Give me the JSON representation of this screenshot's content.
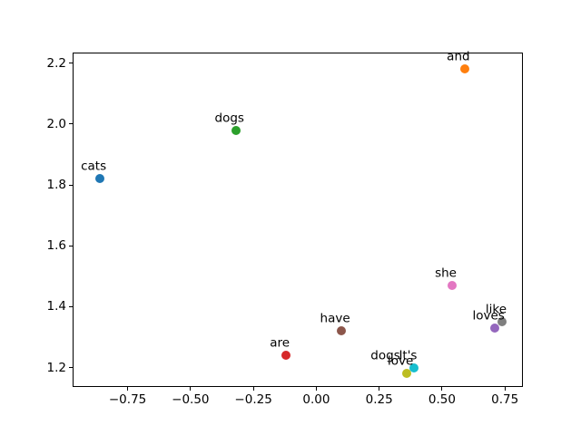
{
  "figure": {
    "background": "#ffffff",
    "title": ""
  },
  "chart_data": {
    "type": "scatter",
    "title": "",
    "xlabel": "",
    "ylabel": "",
    "xlim": [
      -0.965,
      0.825
    ],
    "ylim": [
      1.133,
      2.232
    ],
    "grid": false,
    "legend": false,
    "xtick_values": [
      -0.75,
      -0.5,
      -0.25,
      0.0,
      0.25,
      0.5,
      0.75
    ],
    "xtick_labels": [
      "−0.75",
      "−0.50",
      "−0.25",
      "0.00",
      "0.25",
      "0.50",
      "0.75"
    ],
    "ytick_values": [
      1.2,
      1.4,
      1.6,
      1.8,
      2.0,
      2.2
    ],
    "ytick_labels": [
      "1.2",
      "1.4",
      "1.6",
      "1.8",
      "2.0",
      "2.2"
    ],
    "points": [
      {
        "label": "cats",
        "x": -0.86,
        "y": 1.82,
        "color": "#1f77b4",
        "marker": true
      },
      {
        "label": "and",
        "x": 0.59,
        "y": 2.18,
        "color": "#ff7f0e",
        "marker": true
      },
      {
        "label": "dogs",
        "x": -0.32,
        "y": 1.98,
        "color": "#2ca02c",
        "marker": true
      },
      {
        "label": "are",
        "x": -0.12,
        "y": 1.24,
        "color": "#d62728",
        "marker": true
      },
      {
        "label": "loves",
        "x": 0.71,
        "y": 1.33,
        "color": "#9467bd",
        "marker": true
      },
      {
        "label": "have",
        "x": 0.1,
        "y": 1.32,
        "color": "#8c564b",
        "marker": true
      },
      {
        "label": "she",
        "x": 0.54,
        "y": 1.47,
        "color": "#e377c2",
        "marker": true
      },
      {
        "label": "like",
        "x": 0.74,
        "y": 1.35,
        "color": "#7f7f7f",
        "marker": true
      },
      {
        "label": "love",
        "x": 0.36,
        "y": 1.18,
        "color": "#bcbd22",
        "marker": true
      },
      {
        "label": "It's",
        "x": 0.39,
        "y": 1.2,
        "color": "#17becf",
        "marker": true
      },
      {
        "label": "dogs",
        "x": 0.3,
        "y": 1.2,
        "color": null,
        "marker": false
      }
    ]
  }
}
